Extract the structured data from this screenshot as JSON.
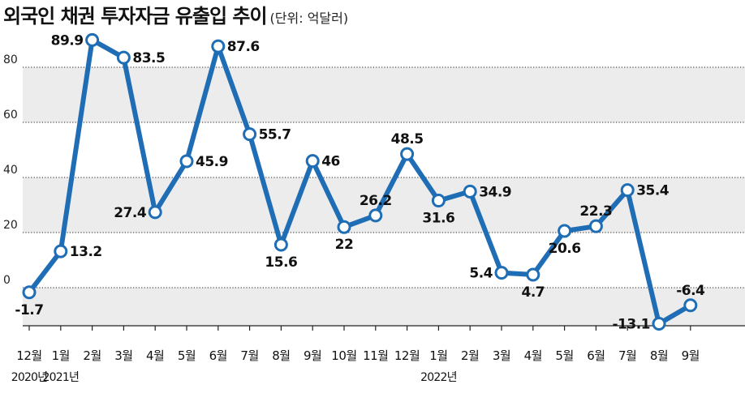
{
  "header": {
    "title": "외국인 채권 투자자금 유출입 추이",
    "unit": "(단위: 억달러)"
  },
  "colors": {
    "line": "#1f6db5",
    "band": "#ececec"
  },
  "chart_data": {
    "type": "line",
    "title": "외국인 채권 투자자금 유출입 추이",
    "ylabel": "(단위: 억달러)",
    "ylim": [
      -14,
      98
    ],
    "yticks": [
      0,
      20,
      40,
      60,
      80
    ],
    "grid": true,
    "categories": [
      "12월",
      "1월",
      "2월",
      "3월",
      "4월",
      "5월",
      "6월",
      "7월",
      "8월",
      "9월",
      "10월",
      "11월",
      "12월",
      "1월",
      "2월",
      "3월",
      "4월",
      "5월",
      "6월",
      "7월",
      "8월",
      "9월"
    ],
    "year_labels": [
      {
        "index": 0,
        "label": "2020년"
      },
      {
        "index": 1,
        "label": "2021년"
      },
      {
        "index": 13,
        "label": "2022년"
      }
    ],
    "series": [
      {
        "values": [
          -1.7,
          13.2,
          89.9,
          83.5,
          27.4,
          45.9,
          87.6,
          55.7,
          15.6,
          46,
          22,
          26.2,
          48.5,
          31.6,
          34.9,
          5.4,
          4.7,
          20.6,
          22.3,
          35.4,
          -13.1,
          -6.4
        ],
        "labels": [
          "-1.7",
          "13.2",
          "89.9",
          "83.5",
          "27.4",
          "45.9",
          "87.6",
          "55.7",
          "15.6",
          "46",
          "22",
          "26.2",
          "48.5",
          "31.6",
          "34.9",
          "5.4",
          "4.7",
          "20.6",
          "22.3",
          "35.4",
          "-13.1",
          "-6.4"
        ],
        "label_pos": [
          "below",
          "right",
          "left",
          "right",
          "left",
          "right",
          "right",
          "right",
          "below",
          "right",
          "below",
          "above",
          "above",
          "below",
          "right",
          "left",
          "below",
          "below",
          "above",
          "right",
          "left",
          "above"
        ]
      }
    ]
  }
}
